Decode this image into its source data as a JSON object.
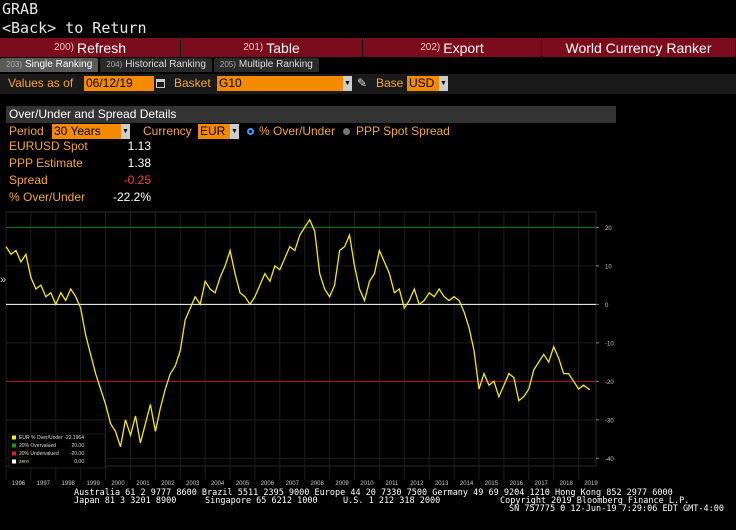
{
  "header": {
    "command": "GRAB",
    "back": "<Back> to Return"
  },
  "menubar": [
    {
      "num": "200)",
      "label": "Refresh"
    },
    {
      "num": "201)",
      "label": "Table"
    },
    {
      "num": "202)",
      "label": "Export"
    },
    {
      "num": "",
      "label": "World Currency Ranker"
    }
  ],
  "tabs": [
    {
      "num": "203)",
      "label": "Single Ranking",
      "active": true
    },
    {
      "num": "204)",
      "label": "Historical Ranking",
      "active": false
    },
    {
      "num": "205)",
      "label": "Multiple Ranking",
      "active": false
    }
  ],
  "filters": {
    "values_as_of_label": "Values as of",
    "date": "06/12/19",
    "basket_label": "Basket",
    "basket": "G10",
    "base_label": "Base",
    "base": "USD"
  },
  "panel": {
    "title": "Over/Under and Spread Details",
    "period_label": "Period",
    "period": "30 Years",
    "currency_label": "Currency",
    "currency": "EUR",
    "opt1": "% Over/Under",
    "opt2": "PPP Spot Spread",
    "stats": [
      {
        "label": "EURUSD Spot",
        "value": "1.13",
        "color": "#ffffff"
      },
      {
        "label": "PPP Estimate",
        "value": "1.38",
        "color": "#ffffff"
      },
      {
        "label": "Spread",
        "value": "-0.25",
        "color": "#ff3b3b"
      },
      {
        "label": "% Over/Under",
        "value": "-22.2%",
        "color": "#ffffff"
      }
    ]
  },
  "chart_data": {
    "type": "line",
    "title": "",
    "x_range": [
      1996.0,
      2019.7
    ],
    "ylim": [
      -42,
      24
    ],
    "y_ticks": [
      20,
      10,
      0,
      -10,
      -20,
      -30,
      -40
    ],
    "x_tick_labels": [
      "1996",
      "1997",
      "1998",
      "1999",
      "2000",
      "2001",
      "2002",
      "2003",
      "2004",
      "2005",
      "2006",
      "2007",
      "2008",
      "2009",
      "2010",
      "2011",
      "2012",
      "2013",
      "2014",
      "2015",
      "2016",
      "2017",
      "2018",
      "2019"
    ],
    "reference_lines": [
      {
        "name": "20% Overvalued",
        "value": 20.0,
        "color": "#1a7a1a"
      },
      {
        "name": "20% Undervalued",
        "value": -20.0,
        "color": "#b01818"
      },
      {
        "name": "zero",
        "value": 0.0,
        "color": "#ffffff"
      }
    ],
    "series": [
      {
        "name": "EUR % Over/Under",
        "color": "#f5e62a",
        "points": [
          [
            1996.0,
            15
          ],
          [
            1996.2,
            13
          ],
          [
            1996.4,
            14
          ],
          [
            1996.6,
            11
          ],
          [
            1996.8,
            13
          ],
          [
            1997.0,
            7
          ],
          [
            1997.2,
            4
          ],
          [
            1997.4,
            5
          ],
          [
            1997.6,
            2
          ],
          [
            1997.8,
            3
          ],
          [
            1998.0,
            0
          ],
          [
            1998.2,
            3
          ],
          [
            1998.4,
            1
          ],
          [
            1998.6,
            4
          ],
          [
            1998.8,
            2
          ],
          [
            1999.0,
            -1
          ],
          [
            1999.2,
            -8
          ],
          [
            1999.4,
            -13
          ],
          [
            1999.6,
            -18
          ],
          [
            1999.8,
            -22
          ],
          [
            2000.0,
            -26
          ],
          [
            2000.2,
            -31
          ],
          [
            2000.4,
            -33
          ],
          [
            2000.6,
            -37
          ],
          [
            2000.8,
            -30
          ],
          [
            2001.0,
            -34
          ],
          [
            2001.2,
            -29
          ],
          [
            2001.4,
            -36
          ],
          [
            2001.6,
            -31
          ],
          [
            2001.8,
            -26
          ],
          [
            2002.0,
            -33
          ],
          [
            2002.2,
            -27
          ],
          [
            2002.4,
            -22
          ],
          [
            2002.6,
            -18
          ],
          [
            2002.8,
            -16
          ],
          [
            2003.0,
            -12
          ],
          [
            2003.2,
            -4
          ],
          [
            2003.4,
            -1
          ],
          [
            2003.6,
            2
          ],
          [
            2003.8,
            0
          ],
          [
            2004.0,
            6
          ],
          [
            2004.2,
            4
          ],
          [
            2004.4,
            3
          ],
          [
            2004.6,
            7
          ],
          [
            2004.8,
            10
          ],
          [
            2005.0,
            14
          ],
          [
            2005.2,
            8
          ],
          [
            2005.4,
            3
          ],
          [
            2005.6,
            2
          ],
          [
            2005.8,
            0
          ],
          [
            2006.0,
            2
          ],
          [
            2006.2,
            5
          ],
          [
            2006.4,
            8
          ],
          [
            2006.6,
            6
          ],
          [
            2006.8,
            10
          ],
          [
            2007.0,
            9
          ],
          [
            2007.2,
            12
          ],
          [
            2007.4,
            15
          ],
          [
            2007.6,
            14
          ],
          [
            2007.8,
            18
          ],
          [
            2008.0,
            20
          ],
          [
            2008.2,
            22
          ],
          [
            2008.4,
            19
          ],
          [
            2008.6,
            8
          ],
          [
            2008.8,
            4
          ],
          [
            2009.0,
            2
          ],
          [
            2009.2,
            5
          ],
          [
            2009.4,
            14
          ],
          [
            2009.6,
            15
          ],
          [
            2009.8,
            18
          ],
          [
            2010.0,
            10
          ],
          [
            2010.2,
            4
          ],
          [
            2010.4,
            1
          ],
          [
            2010.6,
            6
          ],
          [
            2010.8,
            8
          ],
          [
            2011.0,
            14
          ],
          [
            2011.2,
            11
          ],
          [
            2011.4,
            8
          ],
          [
            2011.6,
            3
          ],
          [
            2011.8,
            4
          ],
          [
            2012.0,
            -1
          ],
          [
            2012.2,
            1
          ],
          [
            2012.4,
            4
          ],
          [
            2012.6,
            0
          ],
          [
            2012.8,
            1
          ],
          [
            2013.0,
            3
          ],
          [
            2013.2,
            2
          ],
          [
            2013.4,
            4
          ],
          [
            2013.6,
            2
          ],
          [
            2013.8,
            1
          ],
          [
            2014.0,
            2
          ],
          [
            2014.2,
            1
          ],
          [
            2014.4,
            -2
          ],
          [
            2014.6,
            -6
          ],
          [
            2014.8,
            -12
          ],
          [
            2015.0,
            -22
          ],
          [
            2015.2,
            -18
          ],
          [
            2015.4,
            -21
          ],
          [
            2015.6,
            -20
          ],
          [
            2015.8,
            -24
          ],
          [
            2016.0,
            -21
          ],
          [
            2016.2,
            -18
          ],
          [
            2016.4,
            -19
          ],
          [
            2016.6,
            -25
          ],
          [
            2016.8,
            -24
          ],
          [
            2017.0,
            -22
          ],
          [
            2017.2,
            -17
          ],
          [
            2017.4,
            -15
          ],
          [
            2017.6,
            -13
          ],
          [
            2017.8,
            -15
          ],
          [
            2018.0,
            -11
          ],
          [
            2018.2,
            -14
          ],
          [
            2018.4,
            -18
          ],
          [
            2018.6,
            -18
          ],
          [
            2018.8,
            -20
          ],
          [
            2019.0,
            -22
          ],
          [
            2019.2,
            -21
          ],
          [
            2019.45,
            -22.2
          ]
        ]
      }
    ],
    "legend": {
      "placement": "bottom-left",
      "entries": [
        {
          "label": "EUR % Over/Under",
          "value": "-22.1964",
          "color": "#f5e62a"
        },
        {
          "label": "20% Overvalued",
          "value": "20.00",
          "color": "#1a9a1a"
        },
        {
          "label": "20% Undervalued",
          "value": "-20.00",
          "color": "#e02020"
        },
        {
          "label": "zero",
          "value": "0.00",
          "color": "#ffffff"
        }
      ]
    }
  },
  "footer": {
    "line1": "Australia 61 2 9777 8600 Brazil 5511 2395 9000 Europe 44 20 7330 7500 Germany 49 69 9204 1210 Hong Kong 852 2977 6000",
    "line2a": "Japan 81 3 3201 8900",
    "line2b": "Singapore 65 6212 1000",
    "line2c": "U.S. 1 212 318 2000",
    "line2d": "Copyright 2019 Bloomberg Finance L.P.",
    "line3": "SN 757775 0 12-Jun-19  7:29:06 EDT  GMT-4:00"
  }
}
